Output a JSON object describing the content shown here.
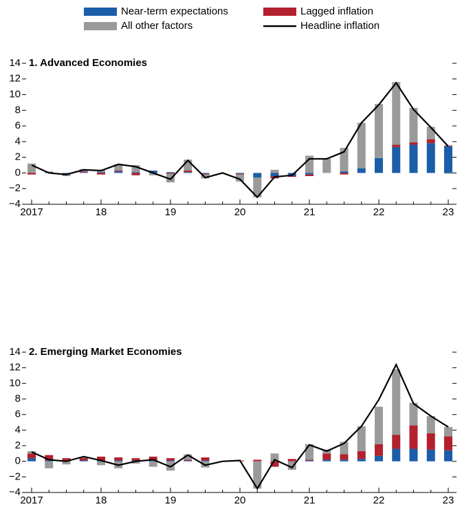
{
  "chart_data": [
    {
      "type": "bar",
      "title": "1. Advanced Economies",
      "categories": [
        "2017",
        null,
        null,
        null,
        "18",
        null,
        null,
        null,
        "19",
        null,
        null,
        null,
        "20",
        null,
        null,
        null,
        "21",
        null,
        null,
        null,
        "22",
        null,
        null,
        null,
        "23"
      ],
      "ylim": [
        -4,
        14
      ],
      "yticks": [
        {
          "value": -4,
          "label": "−4"
        },
        {
          "value": -2,
          "label": "−2"
        },
        0,
        2,
        4,
        6,
        8,
        10,
        12,
        14
      ],
      "series": [
        {
          "name": "Near-term expectations",
          "type": "bar",
          "color": "#1b5da8",
          "values": [
            0,
            0.1,
            -0.2,
            0.1,
            0.1,
            0.2,
            0.1,
            0.3,
            0.1,
            0.1,
            -0.1,
            0,
            -0.1,
            -0.6,
            -0.4,
            -0.4,
            -0.2,
            0,
            0.2,
            0.6,
            1.9,
            3.3,
            3.6,
            3.8,
            3.4
          ]
        },
        {
          "name": "Lagged inflation",
          "type": "bar",
          "color": "#b3202e",
          "values": [
            -0.2,
            0,
            0,
            0.1,
            -0.2,
            0.1,
            -0.3,
            0,
            -0.1,
            0.2,
            -0.1,
            0,
            -0.1,
            0,
            -0.3,
            -0.1,
            -0.2,
            0,
            -0.2,
            0,
            0,
            0.3,
            0.3,
            0.5,
            0.1
          ]
        },
        {
          "name": "All other factors",
          "type": "bar",
          "color": "#9a9a9a",
          "values": [
            1.2,
            0.1,
            -0.2,
            0.3,
            0.3,
            0.8,
            0.9,
            -0.3,
            -1.1,
            1.4,
            -0.5,
            0,
            -0.9,
            -2.5,
            0.4,
            0,
            2.2,
            1.8,
            3.0,
            5.8,
            6.9,
            8.0,
            4.4,
            1.6,
            -0.1
          ]
        },
        {
          "name": "Headline inflation",
          "type": "line",
          "color": "#000000",
          "values": [
            1.0,
            0.0,
            -0.2,
            0.4,
            0.3,
            1.1,
            0.8,
            0.0,
            -0.8,
            1.6,
            -0.6,
            0.0,
            -0.8,
            -3.1,
            -0.5,
            -0.3,
            1.8,
            1.8,
            2.7,
            6.4,
            8.7,
            11.5,
            8.1,
            5.8,
            3.4
          ]
        }
      ]
    },
    {
      "type": "bar",
      "title": "2. Emerging Market Economies",
      "categories": [
        "2017",
        null,
        null,
        null,
        "18",
        null,
        null,
        null,
        "19",
        null,
        null,
        null,
        "20",
        null,
        null,
        null,
        "21",
        null,
        null,
        null,
        "22",
        null,
        null,
        null,
        "23"
      ],
      "ylim": [
        -4,
        14
      ],
      "yticks": [
        {
          "value": -4,
          "label": "−4"
        },
        {
          "value": -2,
          "label": "−2"
        },
        0,
        2,
        4,
        6,
        8,
        10,
        12,
        14
      ],
      "series": [
        {
          "type": "bar",
          "color": "#1b5da8",
          "values": [
            0.4,
            0.1,
            0.1,
            0.1,
            0.1,
            0.1,
            0.1,
            0.1,
            0.1,
            0.1,
            0.1,
            0,
            0,
            0,
            0,
            0,
            0.1,
            0.2,
            0.2,
            0.3,
            0.7,
            1.6,
            1.6,
            1.5,
            1.4
          ]
        },
        {
          "type": "bar",
          "color": "#b3202e",
          "values": [
            0.6,
            0.7,
            0.3,
            0.3,
            0.5,
            0.4,
            0.3,
            0.5,
            0.3,
            0.1,
            0.4,
            0,
            0.1,
            0.2,
            -0.7,
            0.3,
            0.1,
            0.8,
            0.7,
            1.0,
            1.5,
            1.8,
            3.0,
            2.1,
            1.8
          ]
        },
        {
          "type": "bar",
          "color": "#9a9a9a",
          "values": [
            0.3,
            -0.9,
            -0.4,
            0.1,
            -0.5,
            -0.9,
            -0.3,
            -0.7,
            -1.2,
            0.7,
            -0.8,
            0,
            0,
            -3.5,
            1.0,
            -1.1,
            2.0,
            0.5,
            1.6,
            3.2,
            4.8,
            8.4,
            2.9,
            2.2,
            1.2
          ]
        },
        {
          "type": "line",
          "color": "#000000",
          "values": [
            1.2,
            0.2,
            0.0,
            0.6,
            0.1,
            -0.5,
            0.0,
            0.2,
            -0.7,
            0.8,
            -0.5,
            0.0,
            0.1,
            -3.5,
            0.2,
            -0.8,
            2.1,
            1.3,
            2.3,
            4.5,
            7.9,
            12.4,
            7.4,
            5.8,
            4.4
          ]
        }
      ]
    }
  ]
}
